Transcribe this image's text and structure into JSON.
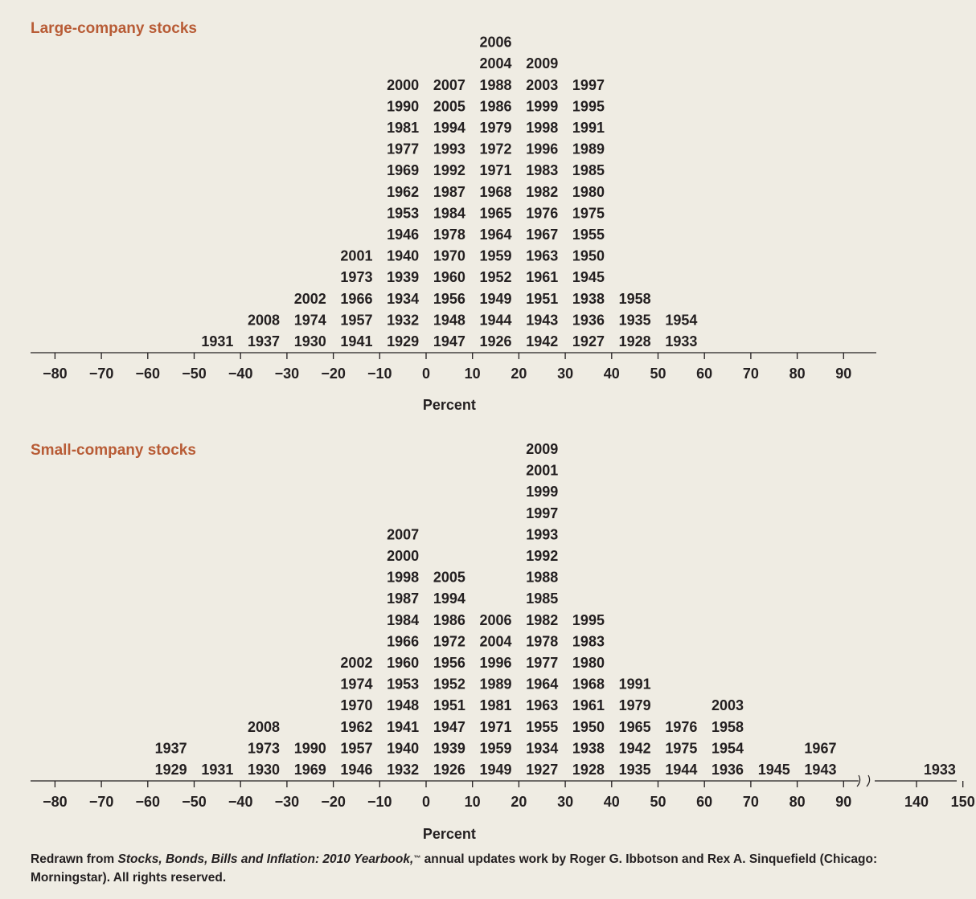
{
  "chart_data": [
    {
      "type": "histogram",
      "title": "Large-company stocks",
      "xlabel": "Percent",
      "bin_width": 10,
      "ticks": [
        -80,
        -70,
        -60,
        -50,
        -40,
        -30,
        -20,
        -10,
        0,
        10,
        20,
        30,
        40,
        50,
        60,
        70,
        80,
        90
      ],
      "bins": [
        {
          "from": -50,
          "to": -40,
          "years": [
            "1931"
          ]
        },
        {
          "from": -40,
          "to": -30,
          "years": [
            "1937",
            "2008"
          ]
        },
        {
          "from": -30,
          "to": -20,
          "years": [
            "1930",
            "1974",
            "2002"
          ]
        },
        {
          "from": -20,
          "to": -10,
          "years": [
            "1941",
            "1957",
            "1966",
            "1973",
            "2001"
          ]
        },
        {
          "from": -10,
          "to": 0,
          "years": [
            "1929",
            "1932",
            "1934",
            "1939",
            "1940",
            "1946",
            "1953",
            "1962",
            "1969",
            "1977",
            "1981",
            "1990",
            "2000"
          ]
        },
        {
          "from": 0,
          "to": 10,
          "years": [
            "1947",
            "1948",
            "1956",
            "1960",
            "1970",
            "1978",
            "1984",
            "1987",
            "1992",
            "1993",
            "1994",
            "2005",
            "2007"
          ]
        },
        {
          "from": 10,
          "to": 20,
          "years": [
            "1926",
            "1944",
            "1949",
            "1952",
            "1959",
            "1964",
            "1965",
            "1968",
            "1971",
            "1972",
            "1979",
            "1986",
            "1988",
            "2004",
            "2006"
          ]
        },
        {
          "from": 20,
          "to": 30,
          "years": [
            "1942",
            "1943",
            "1951",
            "1961",
            "1963",
            "1967",
            "1976",
            "1982",
            "1983",
            "1996",
            "1998",
            "1999",
            "2003",
            "2009"
          ]
        },
        {
          "from": 30,
          "to": 40,
          "years": [
            "1927",
            "1936",
            "1938",
            "1945",
            "1950",
            "1955",
            "1975",
            "1980",
            "1985",
            "1989",
            "1991",
            "1995",
            "1997"
          ]
        },
        {
          "from": 40,
          "to": 50,
          "years": [
            "1928",
            "1935",
            "1958"
          ]
        },
        {
          "from": 50,
          "to": 60,
          "years": [
            "1933",
            "1954"
          ]
        }
      ]
    },
    {
      "type": "histogram",
      "title": "Small-company stocks",
      "xlabel": "Percent",
      "bin_width": 10,
      "ticks": [
        -80,
        -70,
        -60,
        -50,
        -40,
        -30,
        -20,
        -10,
        0,
        10,
        20,
        30,
        40,
        50,
        60,
        70,
        80,
        90,
        140,
        150
      ],
      "axis_break": "between 90 and 140",
      "bins": [
        {
          "from": -60,
          "to": -50,
          "years": [
            "1929",
            "1937"
          ]
        },
        {
          "from": -50,
          "to": -40,
          "years": [
            "1931"
          ]
        },
        {
          "from": -40,
          "to": -30,
          "years": [
            "1930",
            "1973",
            "2008"
          ]
        },
        {
          "from": -30,
          "to": -20,
          "years": [
            "1969",
            "1990"
          ]
        },
        {
          "from": -20,
          "to": -10,
          "years": [
            "1946",
            "1957",
            "1962",
            "1970",
            "1974",
            "2002"
          ]
        },
        {
          "from": -10,
          "to": 0,
          "years": [
            "1932",
            "1940",
            "1941",
            "1948",
            "1953",
            "1960",
            "1966",
            "1984",
            "1987",
            "1998",
            "2000",
            "2007"
          ]
        },
        {
          "from": 0,
          "to": 10,
          "years": [
            "1926",
            "1939",
            "1947",
            "1951",
            "1952",
            "1956",
            "1972",
            "1986",
            "1994",
            "2005"
          ]
        },
        {
          "from": 10,
          "to": 20,
          "years": [
            "1949",
            "1959",
            "1971",
            "1981",
            "1989",
            "1996",
            "2004",
            "2006"
          ]
        },
        {
          "from": 20,
          "to": 30,
          "years": [
            "1927",
            "1934",
            "1955",
            "1963",
            "1964",
            "1977",
            "1978",
            "1982",
            "1985",
            "1988",
            "1992",
            "1993",
            "1997",
            "1999",
            "2001",
            "2009"
          ]
        },
        {
          "from": 30,
          "to": 40,
          "years": [
            "1928",
            "1938",
            "1950",
            "1961",
            "1968",
            "1980",
            "1983",
            "1995"
          ]
        },
        {
          "from": 40,
          "to": 50,
          "years": [
            "1935",
            "1942",
            "1965",
            "1979",
            "1991"
          ]
        },
        {
          "from": 50,
          "to": 60,
          "years": [
            "1944",
            "1975",
            "1976"
          ]
        },
        {
          "from": 60,
          "to": 70,
          "years": [
            "1936",
            "1954",
            "1958",
            "2003"
          ]
        },
        {
          "from": 70,
          "to": 80,
          "years": [
            "1945"
          ]
        },
        {
          "from": 80,
          "to": 90,
          "years": [
            "1943",
            "1967"
          ]
        },
        {
          "from": 140,
          "to": 150,
          "years": [
            "1933"
          ]
        }
      ]
    }
  ],
  "source": {
    "prefix": "Redrawn from ",
    "title": "Stocks, Bonds, Bills and Inflation: 2010 Yearbook,",
    "tm": "™",
    "rest": " annual updates work by Roger G. Ibbotson and Rex A. Sinquefield (Chicago: Morningstar). All rights reserved."
  },
  "colors": {
    "title": "#b85c36",
    "text": "#231f20",
    "background": "#efece3"
  }
}
